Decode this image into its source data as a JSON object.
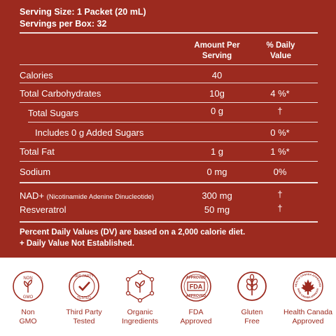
{
  "serving": {
    "size": "Serving Size: 1 Packet (20 mL)",
    "per_box": "Servings per Box: 32"
  },
  "columns": {
    "amount_l1": "Amount Per",
    "amount_l2": "Serving",
    "dv_l1": "% Daily",
    "dv_l2": "Value"
  },
  "rows": [
    {
      "name": "Calories",
      "amount": "40",
      "dv": ""
    },
    {
      "name": "Total Carbohydrates",
      "amount": "10g",
      "dv": "4 %*"
    },
    {
      "name": "Total Sugars",
      "amount": "0 g",
      "dv": "†"
    },
    {
      "name": "Includes 0 g Added Sugars",
      "amount": "",
      "dv": "0 %*"
    },
    {
      "name": "Total Fat",
      "amount": "1 g",
      "dv": "1 %*"
    },
    {
      "name": "Sodium",
      "amount": "0 mg",
      "dv": "0%"
    },
    {
      "name": "NAD+",
      "sub": "(Nicotinamide Adenine Dinucleotide)",
      "amount": "300 mg",
      "dv": "†"
    },
    {
      "name": "Resveratrol",
      "amount": "50 mg",
      "dv": "†"
    }
  ],
  "footnotes": {
    "line1": "Percent Daily Values (DV) are based on a 2,000 calorie diet.",
    "line2": "+ Daily Value Not Established."
  },
  "badges": [
    {
      "icon": "non-gmo-icon",
      "label1": "Non",
      "label2": "GMO",
      "text_top": "NON",
      "text_bottom": "GMO"
    },
    {
      "icon": "third-party-tested-icon",
      "label1": "Third Party",
      "label2": "Tested",
      "text_top": "3RD PARTY",
      "text_bottom": "TESTED"
    },
    {
      "icon": "organic-ingredients-icon",
      "label1": "Organic",
      "label2": "Ingredients"
    },
    {
      "icon": "fda-approved-icon",
      "label1": "FDA",
      "label2": "Approved",
      "text_top": "APPROVED",
      "text_mid": "FDA",
      "text_bottom": "APPROVED"
    },
    {
      "icon": "gluten-free-icon",
      "label1": "Gluten",
      "label2": "Free"
    },
    {
      "icon": "health-canada-icon",
      "label1": "Health Canada",
      "label2": "Approved",
      "text_top": "HEALTH CANADA APPROVED",
      "text_bottom": "SANTE CANADA APPROUVE"
    }
  ],
  "colors": {
    "panel": "#9c2a1f",
    "accent": "#9c2a1f",
    "text": "#ffffff"
  }
}
